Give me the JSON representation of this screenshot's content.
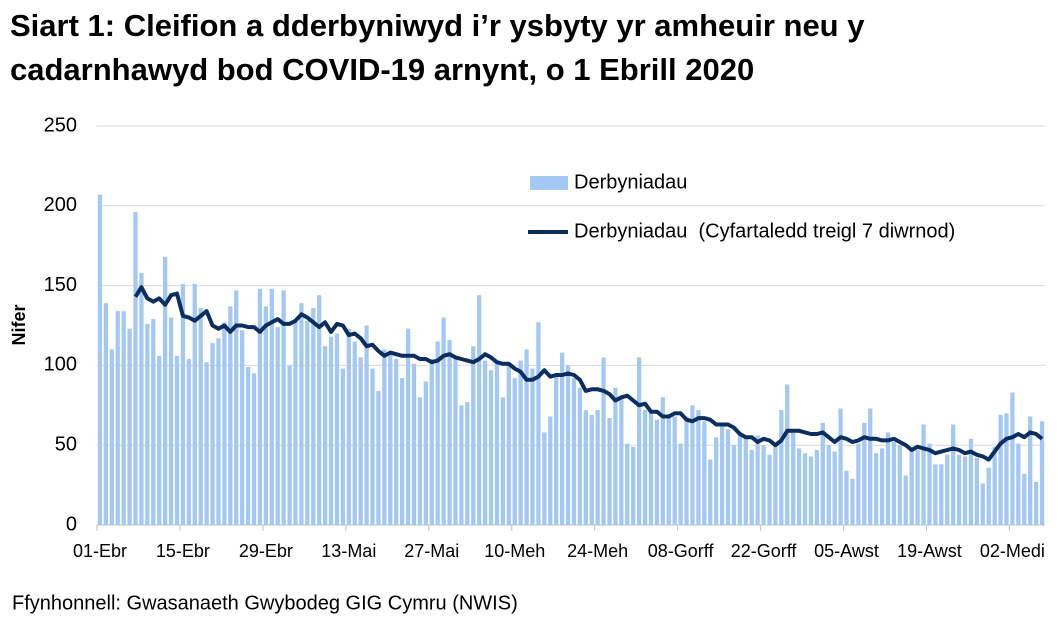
{
  "chart_data": {
    "type": "bar",
    "title": "Siart 1: Cleifion a dderbyniwyd i’r ysbyty yr amheuir neu y cadarnhawyd bod COVID-19 arnynt, o 1 Ebrill 2020",
    "y_label": "Nifer",
    "source": "Ffynhonnell: Gwasanaeth Gwybodeg GIG Cymru (NWIS)",
    "categories": [
      "01-Ebr",
      null,
      null,
      null,
      null,
      null,
      null,
      null,
      null,
      null,
      null,
      null,
      null,
      null,
      "15-Ebr",
      null,
      null,
      null,
      null,
      null,
      null,
      null,
      null,
      null,
      null,
      null,
      null,
      null,
      "29-Ebr",
      null,
      null,
      null,
      null,
      null,
      null,
      null,
      null,
      null,
      null,
      null,
      null,
      null,
      "13-Mai",
      null,
      null,
      null,
      null,
      null,
      null,
      null,
      null,
      null,
      null,
      null,
      null,
      null,
      "27-Mai",
      null,
      null,
      null,
      null,
      null,
      null,
      null,
      null,
      null,
      null,
      null,
      null,
      null,
      "10-Meh",
      null,
      null,
      null,
      null,
      null,
      null,
      null,
      null,
      null,
      null,
      null,
      null,
      null,
      "24-Meh",
      null,
      null,
      null,
      null,
      null,
      null,
      null,
      null,
      null,
      null,
      null,
      null,
      null,
      "08-Gorff",
      null,
      null,
      null,
      null,
      null,
      null,
      null,
      null,
      null,
      null,
      null,
      null,
      null,
      "22-Gorff",
      null,
      null,
      null,
      null,
      null,
      null,
      null,
      null,
      null,
      null,
      null,
      null,
      null,
      "05-Awst",
      null,
      null,
      null,
      null,
      null,
      null,
      null,
      null,
      null,
      null,
      null,
      null,
      null,
      "19-Awst",
      null,
      null,
      null,
      null,
      null,
      null,
      null,
      null,
      null,
      null,
      null,
      null,
      null,
      "02-Medi",
      null,
      null,
      null,
      null,
      null
    ],
    "series": [
      {
        "name": "Derbyniadau",
        "type": "bar",
        "color": "#a4c8f4",
        "values": [
          207,
          139,
          110,
          134,
          134,
          123,
          196,
          158,
          126,
          129,
          106,
          168,
          130,
          106,
          151,
          104,
          151,
          136,
          102,
          114,
          117,
          127,
          137,
          147,
          122,
          99,
          95,
          148,
          137,
          148,
          124,
          147,
          100,
          127,
          139,
          128,
          136,
          144,
          112,
          118,
          120,
          98,
          123,
          115,
          105,
          125,
          98,
          84,
          110,
          107,
          104,
          92,
          123,
          101,
          80,
          90,
          104,
          115,
          130,
          116,
          104,
          75,
          77,
          112,
          144,
          103,
          97,
          102,
          80,
          100,
          92,
          103,
          110,
          98,
          127,
          58,
          68,
          94,
          108,
          100,
          92,
          86,
          72,
          69,
          72,
          105,
          67,
          86,
          79,
          51,
          49,
          105,
          72,
          71,
          66,
          80,
          68,
          68,
          51,
          68,
          75,
          72,
          65,
          41,
          55,
          62,
          60,
          50,
          56,
          55,
          47,
          56,
          50,
          44,
          51,
          72,
          88,
          58,
          48,
          45,
          43,
          47,
          64,
          50,
          46,
          73,
          34,
          29,
          51,
          64,
          73,
          45,
          48,
          58,
          52,
          50,
          31,
          48,
          47,
          63,
          51,
          38,
          38,
          44,
          63,
          44,
          43,
          54,
          42,
          26,
          36,
          49,
          69,
          70,
          83,
          51,
          32,
          68,
          27,
          65
        ]
      },
      {
        "name": "Derbyniadau  (Cyfartaledd treigl 7 diwrnod)",
        "type": "line",
        "color": "#0b2d5f",
        "values": [
          null,
          null,
          null,
          null,
          null,
          null,
          143,
          149,
          142,
          140,
          142,
          138,
          144,
          145,
          131,
          130,
          128,
          131,
          134,
          125,
          123,
          125,
          121,
          125,
          125,
          124,
          124,
          121,
          125,
          127,
          129,
          126,
          126,
          128,
          132,
          130,
          127,
          124,
          127,
          121,
          126,
          125,
          119,
          120,
          117,
          112,
          113,
          109,
          106,
          108,
          107,
          106,
          106,
          106,
          104,
          104,
          102,
          103,
          106,
          107,
          105,
          104,
          103,
          102,
          104,
          107,
          105,
          102,
          101,
          101,
          98,
          96,
          91,
          91,
          93,
          97,
          93,
          94,
          94,
          95,
          94,
          91,
          84,
          85,
          85,
          84,
          82,
          78,
          80,
          81,
          78,
          75,
          76,
          71,
          71,
          68,
          68,
          70,
          70,
          66,
          65,
          67,
          67,
          66,
          63,
          63,
          63,
          61,
          57,
          55,
          55,
          52,
          54,
          53,
          50,
          53,
          59,
          59,
          59,
          58,
          57,
          57,
          58,
          55,
          52,
          55,
          54,
          52,
          53,
          55,
          54,
          54,
          53,
          53,
          54,
          52,
          50,
          47,
          49,
          48,
          47,
          45,
          46,
          47,
          48,
          47,
          45,
          46,
          44,
          43,
          41,
          46,
          51,
          54,
          55,
          57,
          55,
          58,
          57,
          54
        ]
      }
    ],
    "ylim": [
      0,
      250
    ],
    "yticks": [
      0,
      50,
      100,
      150,
      200,
      250
    ],
    "grid": true
  }
}
